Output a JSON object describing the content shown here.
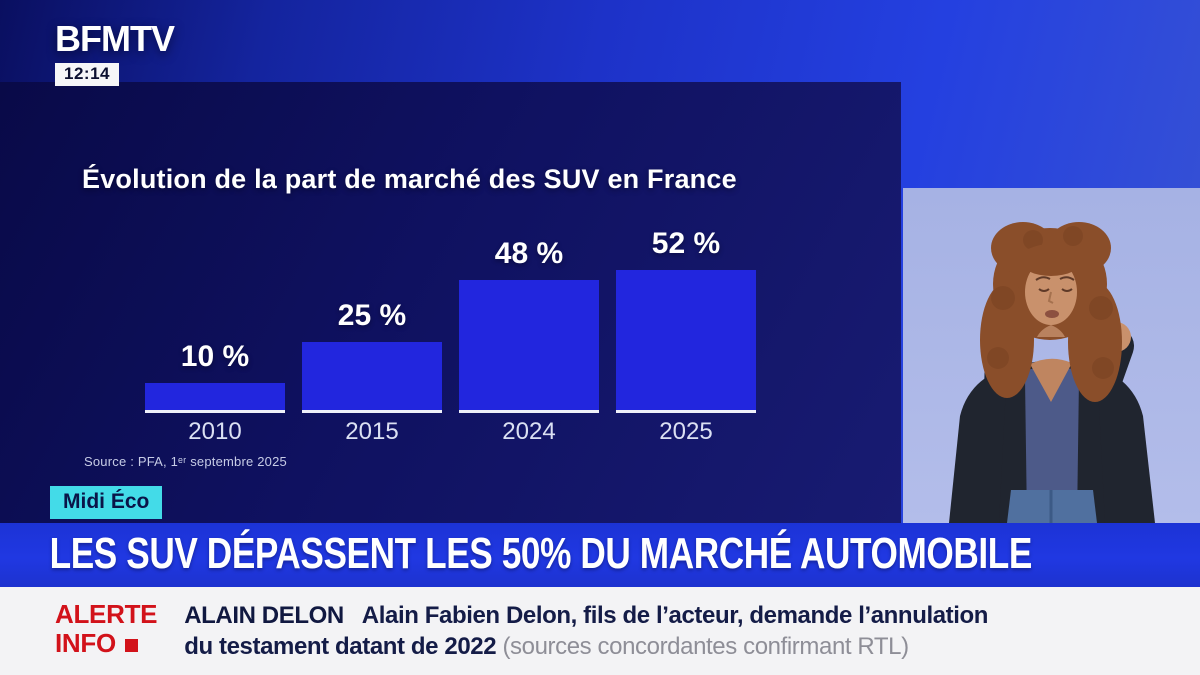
{
  "brand": {
    "logo": "BFMTV",
    "time": "12:14"
  },
  "program": {
    "badge": "Midi Éco"
  },
  "chart_data": {
    "type": "bar",
    "title": "Évolution de la part de marché des SUV en France",
    "categories": [
      "2010",
      "2015",
      "2024",
      "2025"
    ],
    "values": [
      10,
      25,
      48,
      52
    ],
    "value_labels": [
      "10 %",
      "25 %",
      "48 %",
      "52 %"
    ],
    "unit": "%",
    "ylim": [
      0,
      60
    ],
    "grid": false,
    "legend": false,
    "source": "Source : PFA, 1ᵉʳ septembre 2025",
    "bar_color": "#2226de"
  },
  "headline": {
    "text": "LES SUV DÉPASSENT LES 50% DU MARCHÉ AUTOMOBILE"
  },
  "ticker": {
    "alert_line1": "ALERTE",
    "alert_line2": "INFO",
    "topic": "ALAIN DELON",
    "line1": "Alain Fabien Delon, fils de l’acteur, demande l’annulation",
    "line2_dark": "du testament datant de 2022",
    "line2_gray": "(sources concordantes confirmant RTL)"
  },
  "colors": {
    "accent_cyan": "#43dbe8",
    "alert_red": "#d2121a",
    "banner_blue": "#2038e2",
    "bar_blue": "#2226de",
    "panel_navy": "#0f1160",
    "interpreter_bg": "#a9b5e6"
  }
}
